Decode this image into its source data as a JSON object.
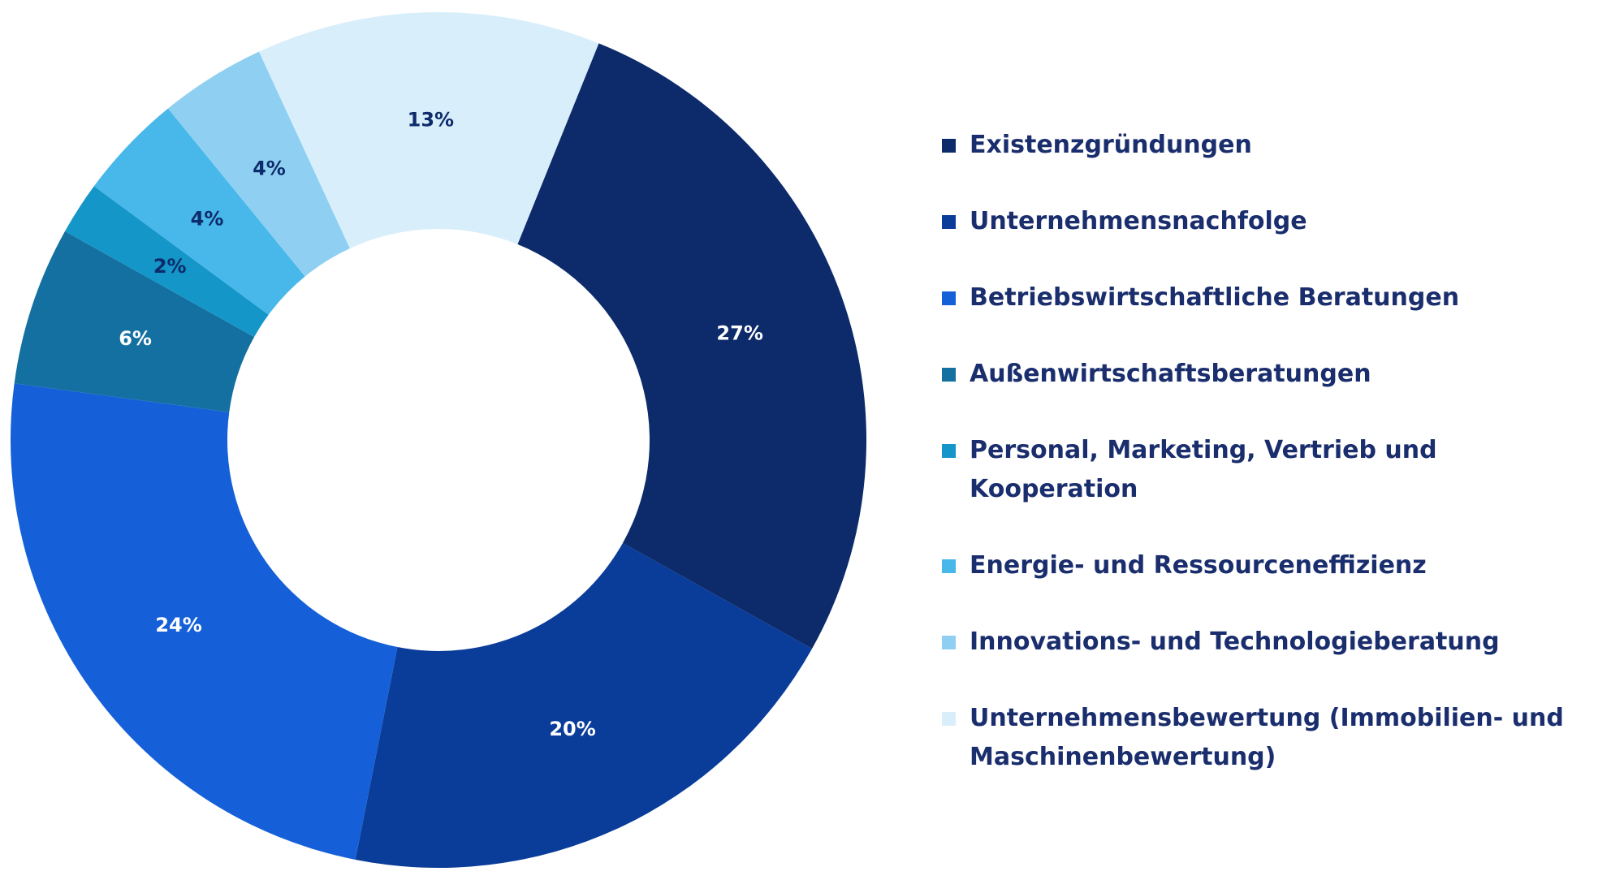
{
  "chart_data": {
    "type": "pie",
    "variant": "donut",
    "title": "",
    "categories": [
      "Existenzgründungen",
      "Unternehmensnachfolge",
      "Betriebswirtschaftliche Beratungen",
      "Außenwirtschaftsberatungen",
      "Personal, Marketing, Vertrieb und Kooperation",
      "Energie- und Ressourceneffizienz",
      "Innovations- und Technologieberatung",
      "Unternehmensbewertung (Immobilien- und Maschinenbewertung)"
    ],
    "values": [
      27,
      20,
      24,
      6,
      2,
      4,
      4,
      13
    ],
    "labels": [
      "27%",
      "20%",
      "24%",
      "6%",
      "2%",
      "4%",
      "4%",
      "13%"
    ],
    "colors": [
      "#0d2b6b",
      "#0a3c99",
      "#1560d8",
      "#1470a0",
      "#1596c8",
      "#48b8ea",
      "#8fd0f2",
      "#d8effb"
    ],
    "label_colors": [
      "#ffffff",
      "#ffffff",
      "#ffffff",
      "#ffffff",
      "#0d2b6b",
      "#0d2b6b",
      "#0d2b6b",
      "#0d2b6b"
    ],
    "legend_position": "right"
  }
}
